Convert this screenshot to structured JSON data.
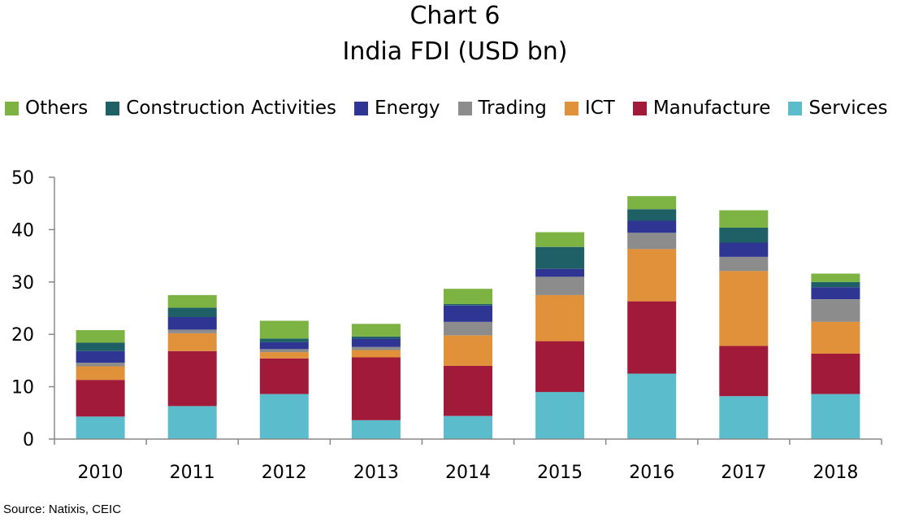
{
  "title": "Chart 6",
  "subtitle": "India FDI (USD bn)",
  "source": "Source:  Natixis, CEIC",
  "chart_data": {
    "type": "bar",
    "stacked": true,
    "title": "Chart 6",
    "subtitle": "India FDI (USD bn)",
    "xlabel": "",
    "ylabel": "",
    "ylim": [
      0,
      50
    ],
    "yticks": [
      0,
      10,
      20,
      30,
      40,
      50
    ],
    "grid": false,
    "legend_position": "top",
    "categories": [
      "2010",
      "2011",
      "2012",
      "2013",
      "2014",
      "2015",
      "2016",
      "2017",
      "2018"
    ],
    "series": [
      {
        "name": "Services",
        "color": "#5bbccc",
        "values": [
          4.3,
          6.3,
          8.6,
          3.6,
          4.4,
          9.0,
          12.5,
          8.2,
          8.6
        ]
      },
      {
        "name": "Manufacture",
        "color": "#a21a3a",
        "values": [
          7.0,
          10.5,
          6.8,
          12.0,
          9.6,
          9.7,
          13.8,
          9.6,
          7.7
        ]
      },
      {
        "name": "ICT",
        "color": "#e0913a",
        "values": [
          2.6,
          3.4,
          1.2,
          1.4,
          5.8,
          8.8,
          10.0,
          14.3,
          6.1
        ]
      },
      {
        "name": "Trading",
        "color": "#8c8c8c",
        "values": [
          0.7,
          0.7,
          0.6,
          0.6,
          2.6,
          3.5,
          3.1,
          2.7,
          4.3
        ]
      },
      {
        "name": "Energy",
        "color": "#2e3592",
        "values": [
          2.2,
          2.4,
          1.3,
          1.6,
          3.1,
          1.5,
          2.3,
          2.7,
          2.3
        ]
      },
      {
        "name": "Construction Activities",
        "color": "#1f5f66",
        "values": [
          1.6,
          1.8,
          0.7,
          0.4,
          0.3,
          4.2,
          2.2,
          2.9,
          1.0
        ]
      },
      {
        "name": "Others",
        "color": "#7cb342",
        "values": [
          2.4,
          2.4,
          3.4,
          2.4,
          2.9,
          2.8,
          2.5,
          3.3,
          1.6
        ]
      }
    ],
    "legend_order": [
      "Others",
      "Construction Activities",
      "Energy",
      "Trading",
      "ICT",
      "Manufacture",
      "Services"
    ]
  }
}
